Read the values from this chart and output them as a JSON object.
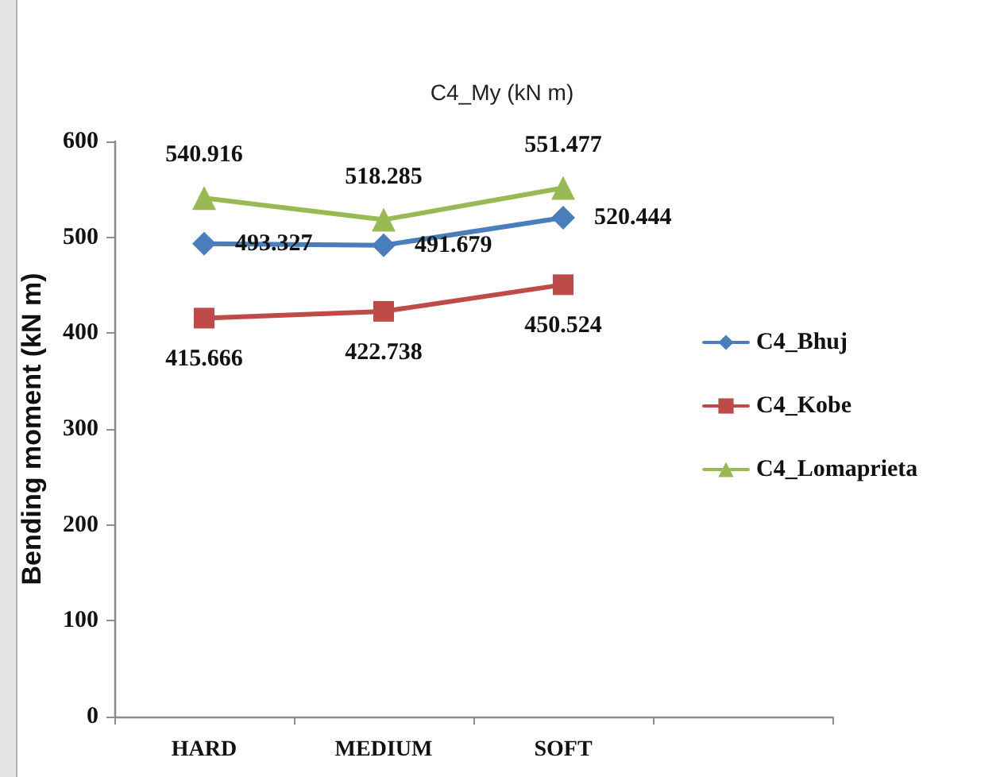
{
  "chart_data": {
    "type": "line",
    "title": "C4_My (kN m)",
    "ylabel": "Bending moment (kN m)",
    "categories": [
      "HARD",
      "MEDIUM",
      "SOFT",
      null
    ],
    "series": [
      {
        "name": "C4_Bhuj",
        "color": "#4a7ebb",
        "marker": "diamond",
        "values": [
          493.327,
          491.679,
          520.444,
          null
        ]
      },
      {
        "name": "C4_Kobe",
        "color": "#be4b48",
        "marker": "square",
        "values": [
          415.666,
          422.738,
          450.524,
          null
        ]
      },
      {
        "name": "C4_Lomaprieta",
        "color": "#98b954",
        "marker": "triangle",
        "values": [
          540.916,
          518.285,
          551.477,
          null
        ]
      }
    ],
    "ylim": [
      0,
      600
    ],
    "yticks": [
      0,
      100,
      200,
      300,
      400,
      500,
      600
    ],
    "data_labels": true,
    "grid": false,
    "legend": "right",
    "line_style": "solid"
  }
}
